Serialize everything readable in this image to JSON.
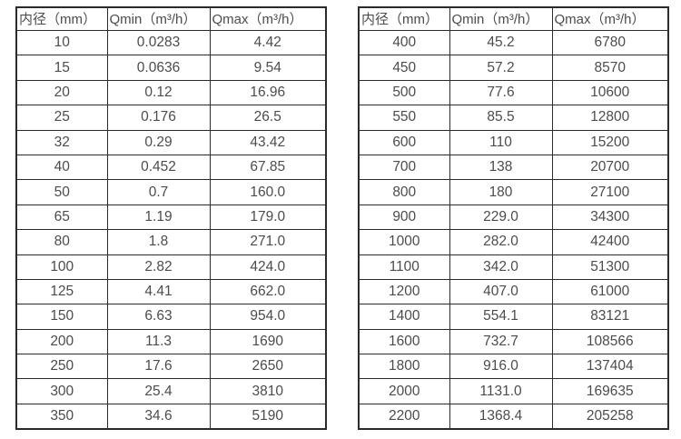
{
  "tables": [
    {
      "name": "flow-table-small-diameters",
      "headers": {
        "diameter": "内径（mm）",
        "qmin": "Qmin（m³/h）",
        "qmax": "Qmax（m³/h）"
      },
      "rows": [
        [
          "10",
          "0.0283",
          "4.42"
        ],
        [
          "15",
          "0.0636",
          "9.54"
        ],
        [
          "20",
          "0.12",
          "16.96"
        ],
        [
          "25",
          "0.176",
          "26.5"
        ],
        [
          "32",
          "0.29",
          "43.42"
        ],
        [
          "40",
          "0.452",
          "67.85"
        ],
        [
          "50",
          "0.7",
          "160.0"
        ],
        [
          "65",
          "1.19",
          "179.0"
        ],
        [
          "80",
          "1.8",
          "271.0"
        ],
        [
          "100",
          "2.82",
          "424.0"
        ],
        [
          "125",
          "4.41",
          "662.0"
        ],
        [
          "150",
          "6.63",
          "954.0"
        ],
        [
          "200",
          "11.3",
          "1690"
        ],
        [
          "250",
          "17.6",
          "2650"
        ],
        [
          "300",
          "25.4",
          "3810"
        ],
        [
          "350",
          "34.6",
          "5190"
        ]
      ]
    },
    {
      "name": "flow-table-large-diameters",
      "headers": {
        "diameter": "内径（mm）",
        "qmin": "Qmin（m³/h）",
        "qmax": "Qmax（m³/h）"
      },
      "rows": [
        [
          "400",
          "45.2",
          "6780"
        ],
        [
          "450",
          "57.2",
          "8570"
        ],
        [
          "500",
          "77.6",
          "10600"
        ],
        [
          "550",
          "85.5",
          "12800"
        ],
        [
          "600",
          "110",
          "15200"
        ],
        [
          "700",
          "138",
          "20700"
        ],
        [
          "800",
          "180",
          "27100"
        ],
        [
          "900",
          "229.0",
          "34300"
        ],
        [
          "1000",
          "282.0",
          "42400"
        ],
        [
          "1100",
          "342.0",
          "51300"
        ],
        [
          "1200",
          "407.0",
          "61000"
        ],
        [
          "1400",
          "554.1",
          "83121"
        ],
        [
          "1600",
          "732.7",
          "108566"
        ],
        [
          "1800",
          "916.0",
          "137404"
        ],
        [
          "2000",
          "1131.0",
          "169635"
        ],
        [
          "2200",
          "1368.4",
          "205258"
        ]
      ]
    }
  ],
  "colors": {
    "border": "#2b2b2b",
    "text": "#4c4c4c",
    "background": "#ffffff"
  }
}
